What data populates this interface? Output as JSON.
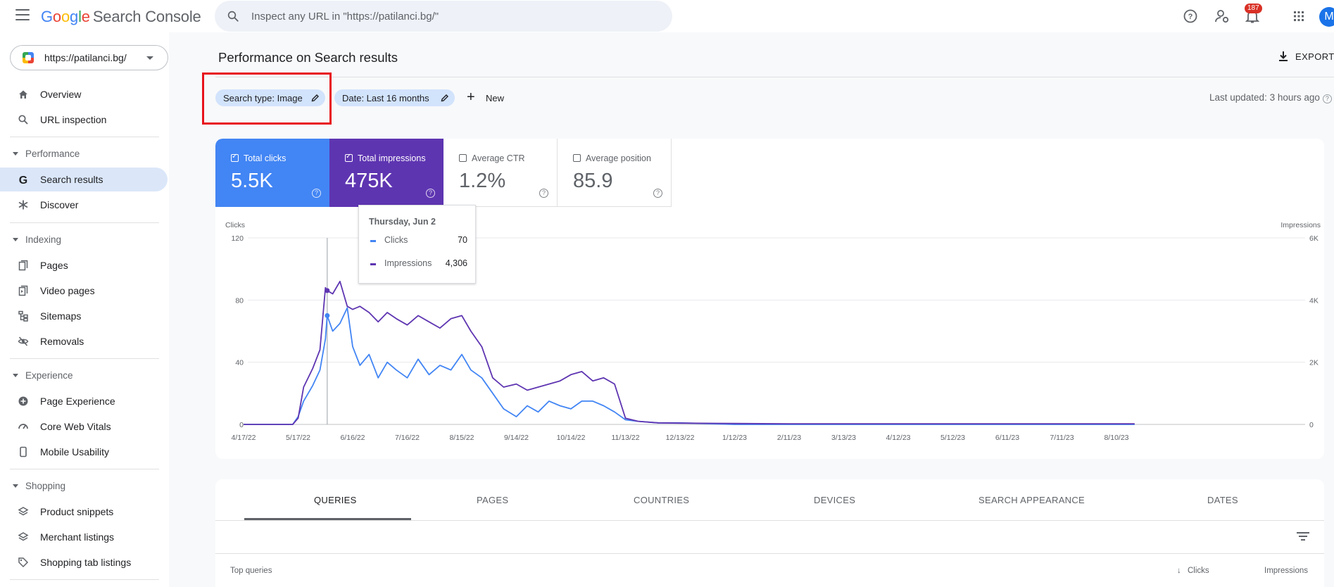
{
  "app": {
    "logo_word": [
      "G",
      "o",
      "o",
      "g",
      "l",
      "e"
    ],
    "product": "Search Console",
    "search_placeholder": "Inspect any URL in \"https://patilanci.bg/\"",
    "notification_count": "187",
    "avatar_letter": "M"
  },
  "sidebar": {
    "property": "https://patilanci.bg/",
    "items": {
      "overview": "Overview",
      "url_inspection": "URL inspection",
      "performance": "Performance",
      "search_results": "Search results",
      "discover": "Discover",
      "indexing": "Indexing",
      "pages": "Pages",
      "video_pages": "Video pages",
      "sitemaps": "Sitemaps",
      "removals": "Removals",
      "experience": "Experience",
      "page_experience": "Page Experience",
      "core_web_vitals": "Core Web Vitals",
      "mobile_usability": "Mobile Usability",
      "shopping": "Shopping",
      "product_snippets": "Product snippets",
      "merchant_listings": "Merchant listings",
      "shopping_tab_listings": "Shopping tab listings"
    }
  },
  "header": {
    "title": "Performance on Search results",
    "export": "EXPORT",
    "filters": [
      "Search type: Image",
      "Date: Last 16 months"
    ],
    "new_label": "New",
    "last_updated": "Last updated: 3 hours ago"
  },
  "metrics": {
    "clicks": {
      "label": "Total clicks",
      "value": "5.5K",
      "checked": true,
      "color": "#4285f4"
    },
    "impressions": {
      "label": "Total impressions",
      "value": "475K",
      "checked": true,
      "color": "#5e35b1"
    },
    "ctr": {
      "label": "Average CTR",
      "value": "1.2%",
      "checked": false
    },
    "position": {
      "label": "Average position",
      "value": "85.9",
      "checked": false
    }
  },
  "tooltip": {
    "date": "Thursday, Jun 2",
    "clicks_label": "Clicks",
    "clicks_value": "70",
    "impressions_label": "Impressions",
    "impressions_value": "4,306"
  },
  "chart_data": {
    "type": "line",
    "ylabel_left": "Clicks",
    "ylabel_right": "Impressions",
    "y_left_ticks": [
      "0",
      "40",
      "80",
      "120"
    ],
    "y_left_range": [
      0,
      120
    ],
    "y_right_ticks": [
      "0",
      "2K",
      "4K",
      "6K"
    ],
    "y_right_range": [
      0,
      6000
    ],
    "x_tick_labels": [
      "4/17/22",
      "5/17/22",
      "6/16/22",
      "7/16/22",
      "8/15/22",
      "9/14/22",
      "10/14/22",
      "11/13/22",
      "12/13/22",
      "1/12/23",
      "2/11/23",
      "3/13/23",
      "4/12/23",
      "5/12/23",
      "6/11/23",
      "7/11/23",
      "8/10/23"
    ],
    "grid": true,
    "series": [
      {
        "name": "Clicks",
        "axis": "left",
        "color": "#4285f4",
        "x": [
          "4/17/22",
          "5/1/22",
          "5/14/22",
          "5/17/22",
          "5/20/22",
          "5/25/22",
          "5/29/22",
          "6/1/22",
          "6/2/22",
          "6/5/22",
          "6/9/22",
          "6/13/22",
          "6/16/22",
          "6/20/22",
          "6/25/22",
          "6/30/22",
          "7/5/22",
          "7/10/22",
          "7/16/22",
          "7/22/22",
          "7/28/22",
          "8/3/22",
          "8/9/22",
          "8/15/22",
          "8/20/22",
          "8/26/22",
          "9/1/22",
          "9/7/22",
          "9/14/22",
          "9/20/22",
          "9/26/22",
          "10/2/22",
          "10/8/22",
          "10/14/22",
          "10/20/22",
          "10/26/22",
          "11/1/22",
          "11/7/22",
          "11/13/22",
          "11/20/22",
          "12/1/22",
          "12/13/22",
          "1/12/23",
          "2/11/23",
          "3/13/23",
          "4/12/23",
          "5/12/23",
          "6/11/23",
          "7/11/23",
          "8/10/23",
          "8/20/23"
        ],
        "values": [
          0,
          0,
          0,
          5,
          15,
          25,
          35,
          55,
          70,
          60,
          65,
          75,
          50,
          38,
          45,
          30,
          40,
          35,
          30,
          42,
          32,
          38,
          35,
          45,
          35,
          30,
          20,
          10,
          5,
          12,
          8,
          15,
          12,
          10,
          15,
          15,
          12,
          8,
          3,
          2,
          1,
          1,
          0,
          0,
          0,
          0,
          0,
          0,
          0,
          0,
          0
        ]
      },
      {
        "name": "Impressions",
        "axis": "right",
        "color": "#5e35b1",
        "x": [
          "4/17/22",
          "5/1/22",
          "5/14/22",
          "5/17/22",
          "5/20/22",
          "5/25/22",
          "5/29/22",
          "6/1/22",
          "6/2/22",
          "6/5/22",
          "6/9/22",
          "6/13/22",
          "6/16/22",
          "6/20/22",
          "6/25/22",
          "6/30/22",
          "7/5/22",
          "7/10/22",
          "7/16/22",
          "7/22/22",
          "7/28/22",
          "8/3/22",
          "8/9/22",
          "8/15/22",
          "8/20/22",
          "8/26/22",
          "9/1/22",
          "9/7/22",
          "9/14/22",
          "9/20/22",
          "9/26/22",
          "10/2/22",
          "10/8/22",
          "10/14/22",
          "10/20/22",
          "10/26/22",
          "11/1/22",
          "11/7/22",
          "11/13/22",
          "11/20/22",
          "12/1/22",
          "12/13/22",
          "1/12/23",
          "2/11/23",
          "3/13/23",
          "4/12/23",
          "5/12/23",
          "6/11/23",
          "7/11/23",
          "8/10/23",
          "8/20/23"
        ],
        "values": [
          0,
          0,
          0,
          200,
          1200,
          1800,
          2400,
          4400,
          4306,
          4200,
          4600,
          3800,
          3700,
          3800,
          3600,
          3300,
          3600,
          3400,
          3200,
          3500,
          3300,
          3100,
          3400,
          3500,
          3000,
          2500,
          1500,
          1200,
          1300,
          1100,
          1200,
          1300,
          1400,
          1600,
          1700,
          1400,
          1500,
          1300,
          200,
          100,
          50,
          40,
          30,
          20,
          20,
          20,
          20,
          20,
          20,
          20,
          20
        ]
      }
    ],
    "hover_date": "6/2/22"
  },
  "tabs": {
    "items": [
      "QUERIES",
      "PAGES",
      "COUNTRIES",
      "DEVICES",
      "SEARCH APPEARANCE",
      "DATES"
    ],
    "active": "QUERIES",
    "col_top_queries": "Top queries",
    "col_clicks": "Clicks",
    "col_impressions": "Impressions"
  }
}
